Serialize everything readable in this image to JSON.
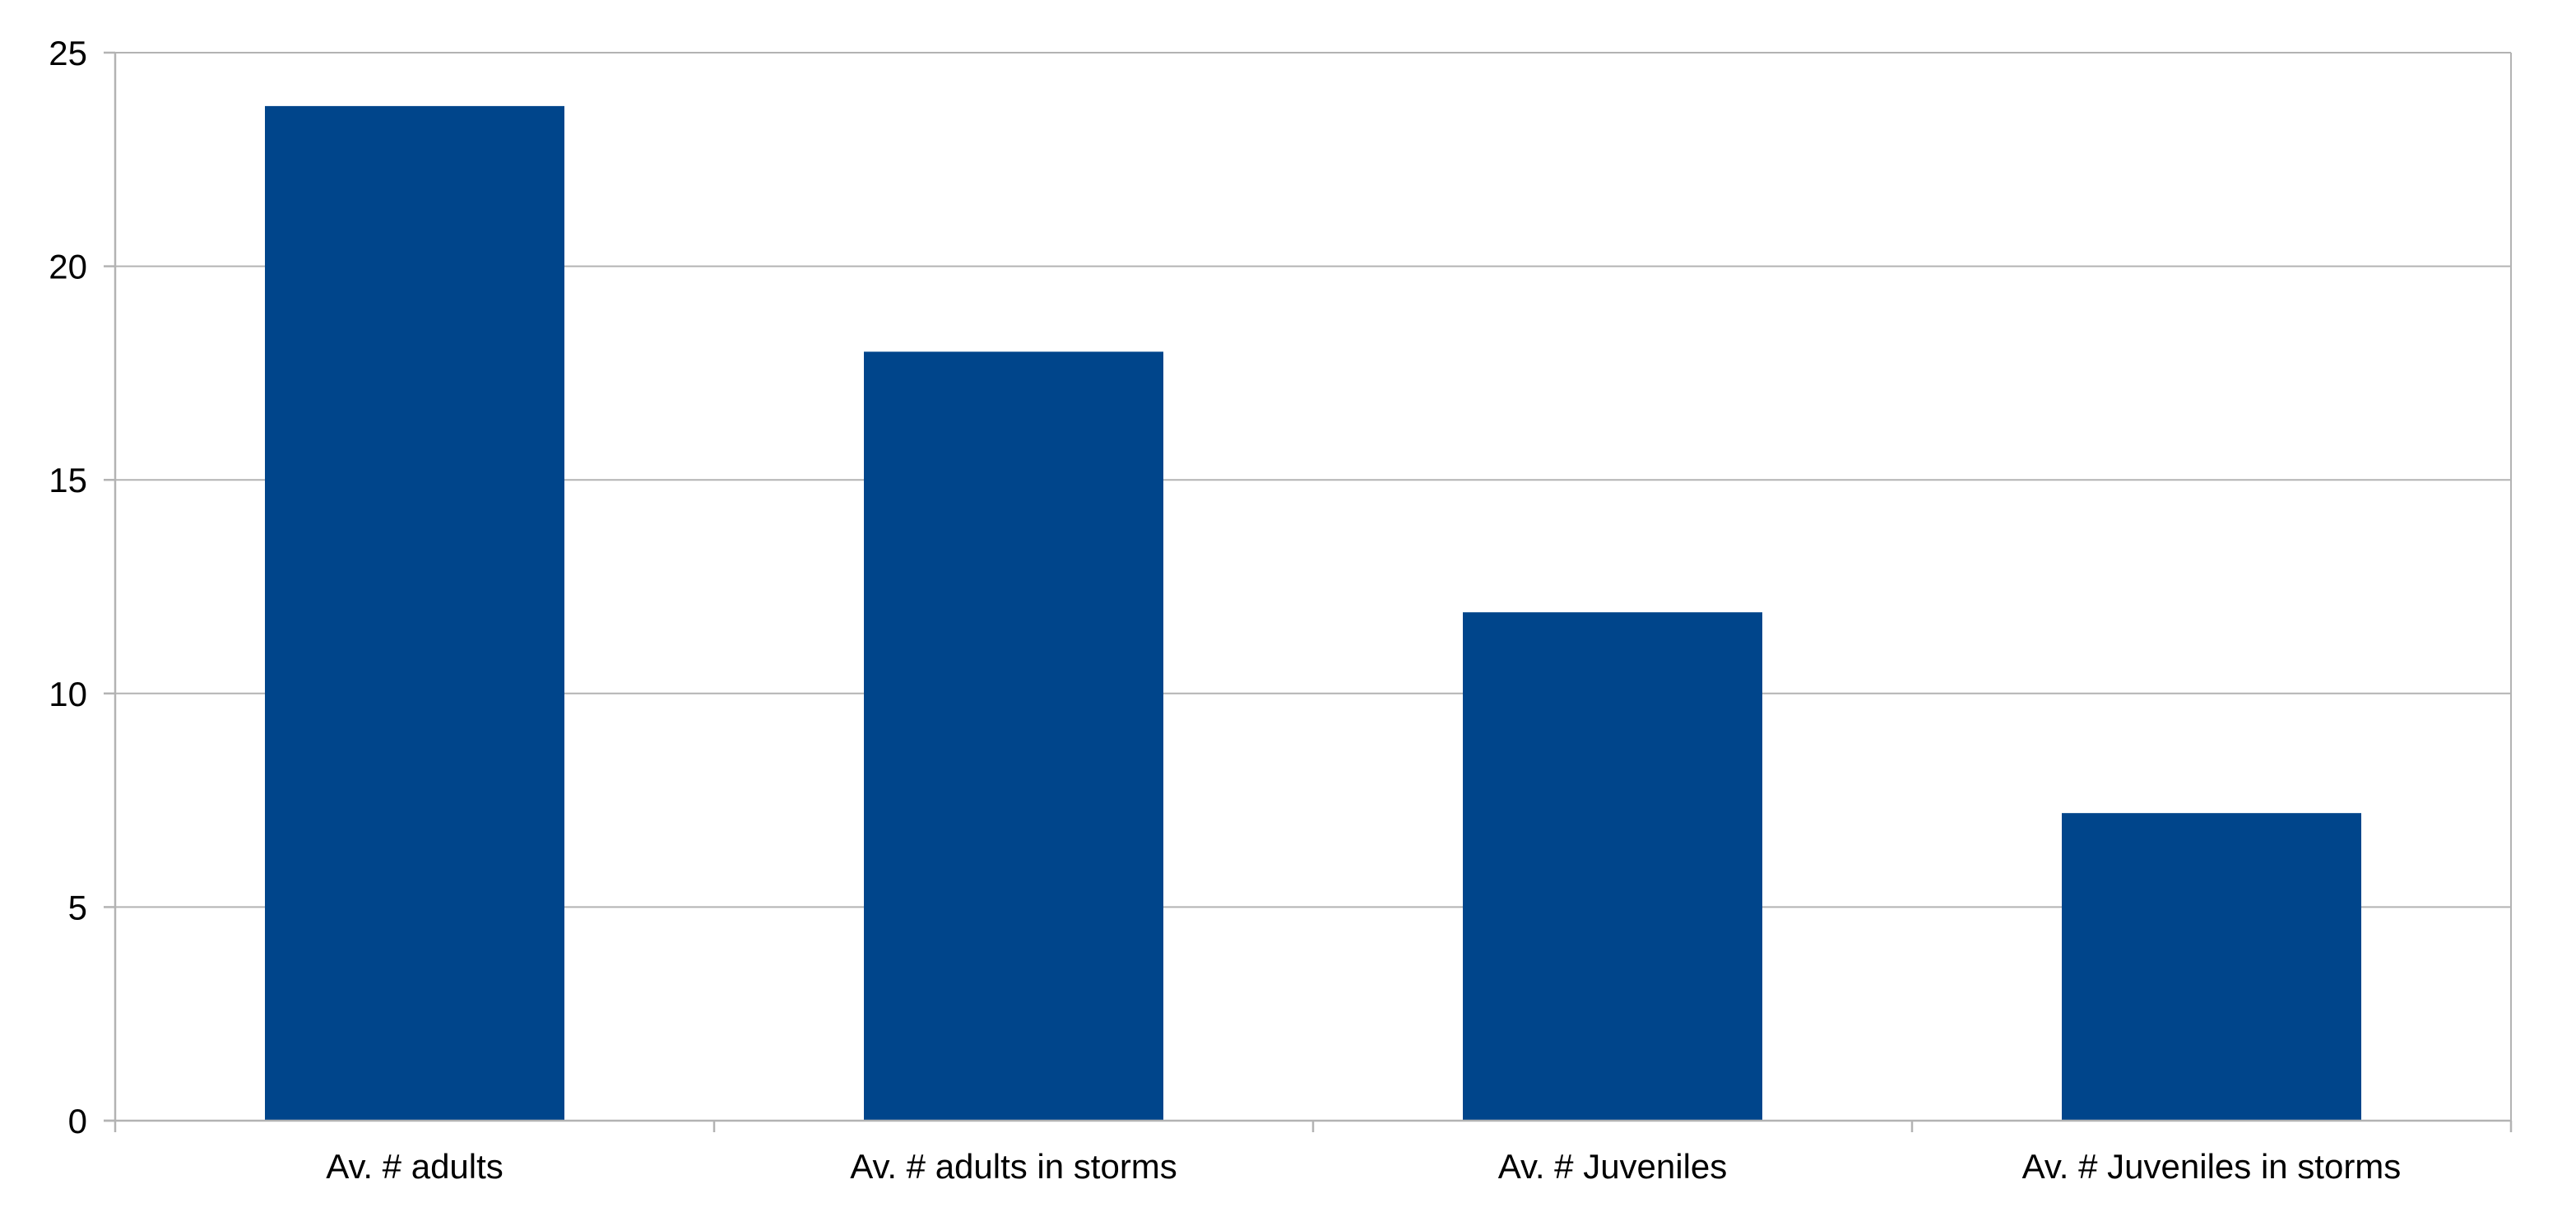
{
  "chart_data": {
    "type": "bar",
    "title": "",
    "xlabel": "",
    "ylabel": "",
    "categories": [
      "Av. # adults",
      "Av. # adults in storms",
      "Av. # Juveniles",
      "Av. # Juveniles in storms"
    ],
    "values": [
      23.75,
      18.0,
      11.9,
      7.2
    ],
    "ylim": [
      0,
      25
    ],
    "yticks": [
      "0",
      "5",
      "10",
      "15",
      "20",
      "25"
    ],
    "grid": true,
    "legend": "none",
    "bar_color": "#00458b"
  }
}
